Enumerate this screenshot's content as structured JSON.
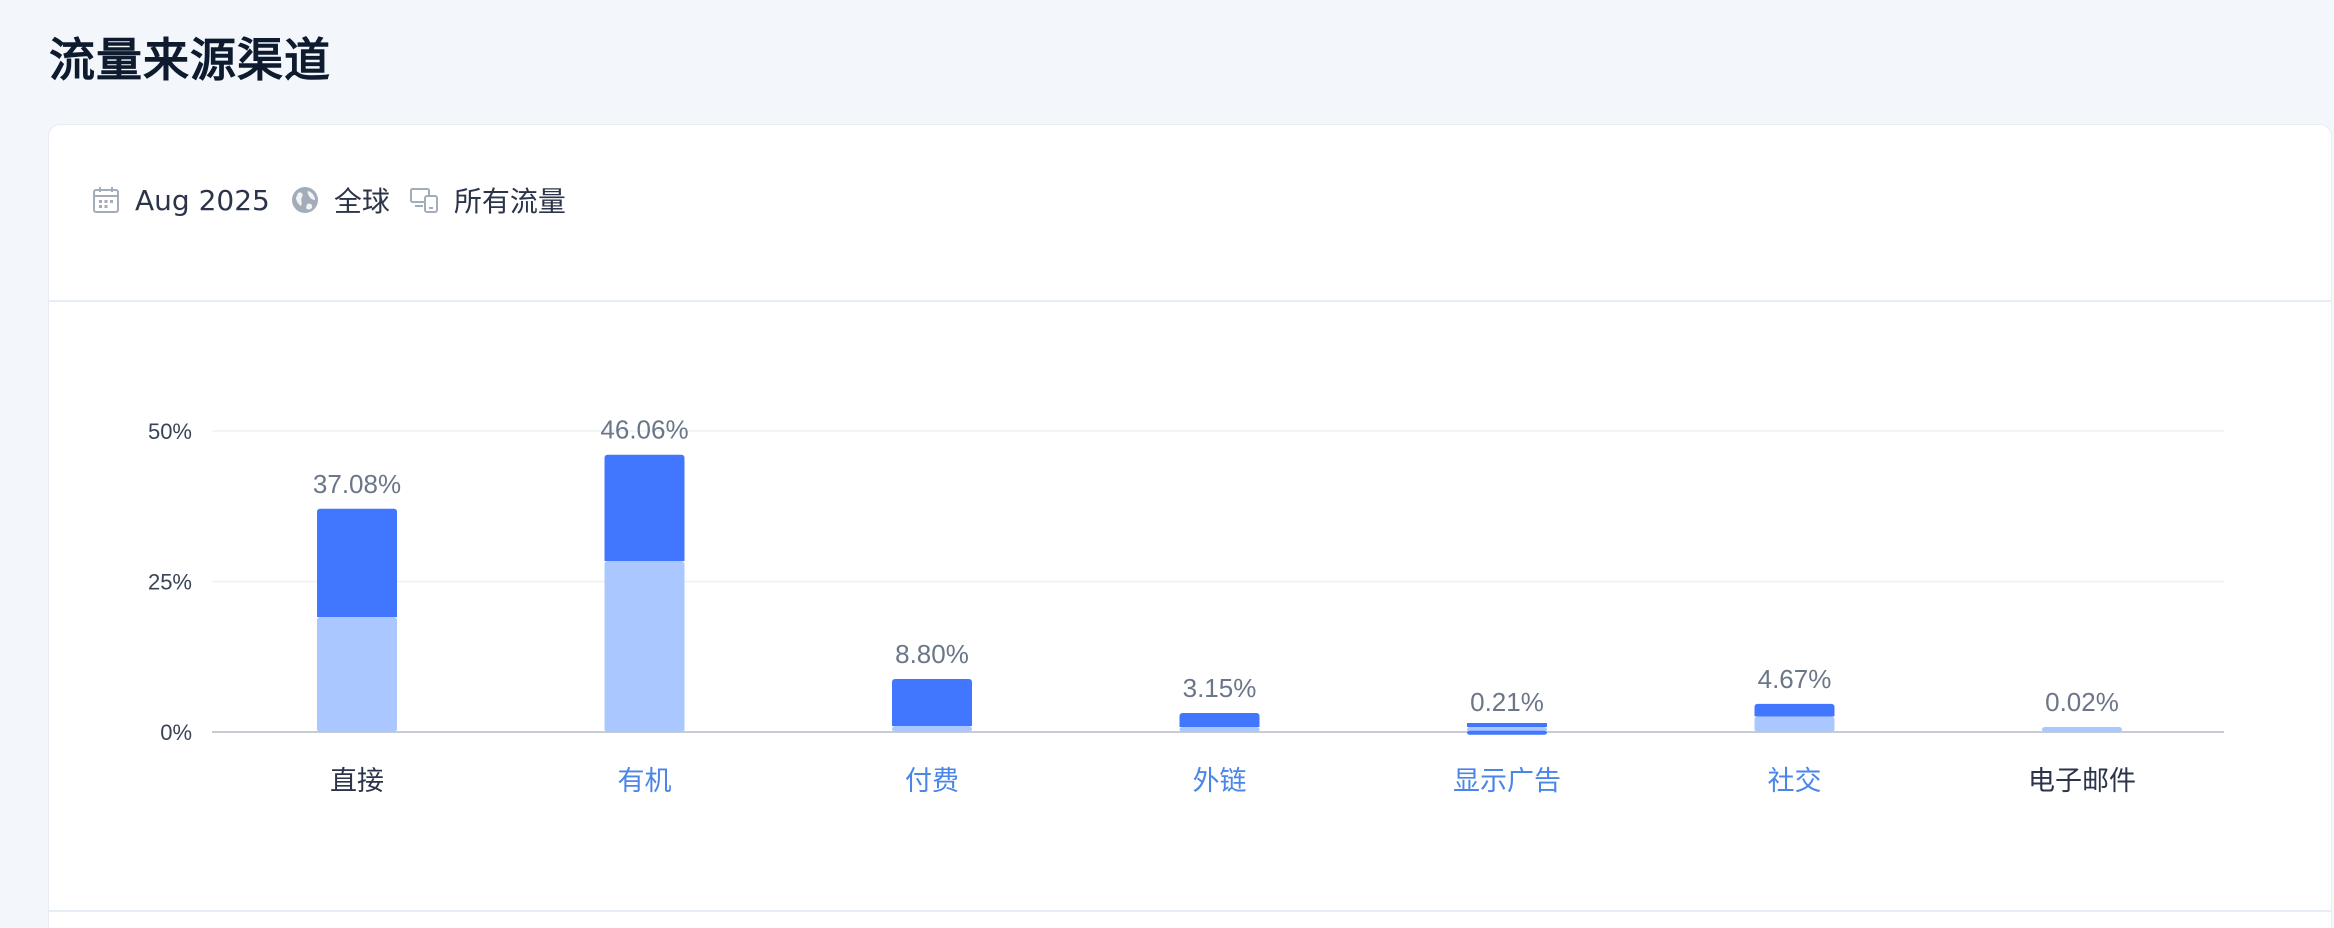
{
  "page": {
    "title": "流量来源渠道"
  },
  "filters": {
    "date": "Aug 2025",
    "region": "全球",
    "traffic": "所有流量",
    "icons": [
      "calendar-icon",
      "globe-icon",
      "devices-icon"
    ]
  },
  "colors": {
    "bar_dark": "#4177ff",
    "bar_light": "#aac8ff",
    "link_label": "#4a86e8",
    "plain_label": "#2b3448"
  },
  "chart_data": {
    "type": "bar",
    "stacked": true,
    "categories": [
      "直接",
      "有机",
      "付费",
      "外链",
      "显示广告",
      "社交",
      "电子邮件"
    ],
    "totals": [
      37.08,
      46.06,
      8.8,
      3.15,
      0.21,
      4.67,
      0.02
    ],
    "data_labels": [
      "37.08%",
      "46.06%",
      "8.80%",
      "3.15%",
      "0.21%",
      "4.67%",
      "0.02%"
    ],
    "series": [
      {
        "values": [
          19.1,
          28.4,
          1.0,
          0.7,
          0.2,
          2.6,
          0.02
        ]
      },
      {
        "values": [
          17.98,
          17.66,
          7.8,
          2.45,
          0.01,
          2.07,
          0.0
        ]
      }
    ],
    "linked_categories": [
      "有机",
      "付费",
      "外链",
      "显示广告",
      "社交"
    ],
    "y_ticks": [
      0,
      25,
      50
    ],
    "y_tick_labels": [
      "0%",
      "25%",
      "50%"
    ],
    "ylim": [
      0,
      50
    ],
    "grid": true
  }
}
